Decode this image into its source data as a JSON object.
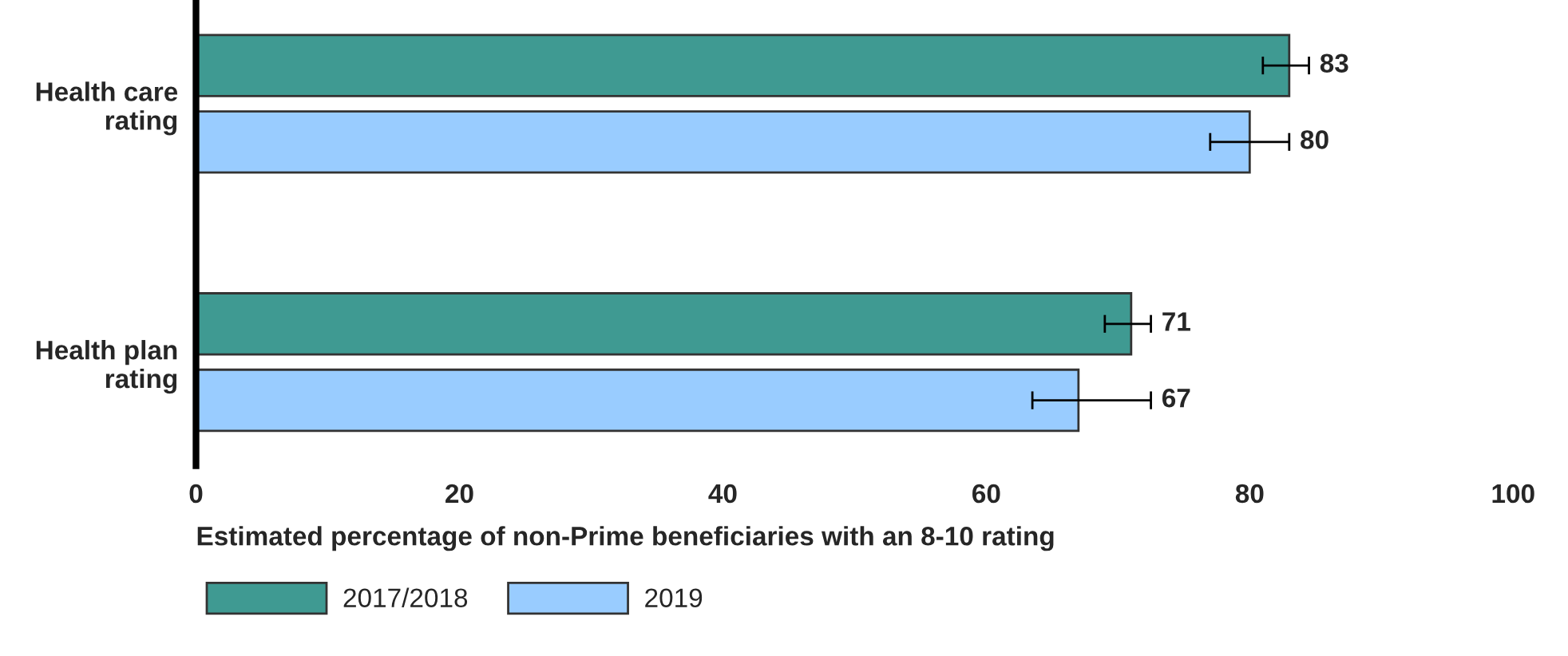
{
  "chart_data": {
    "type": "bar",
    "orientation": "horizontal",
    "categories": [
      "Health care\nrating",
      "Health plan\nrating"
    ],
    "series": [
      {
        "name": "2017/2018",
        "color": "#3f9a92",
        "values": [
          83,
          71
        ],
        "errors": [
          [
            81,
            84.5
          ],
          [
            69,
            72.5
          ]
        ]
      },
      {
        "name": "2019",
        "color": "#99ccff",
        "values": [
          80,
          67
        ],
        "errors": [
          [
            77,
            83
          ],
          [
            63.5,
            72.5
          ]
        ]
      }
    ],
    "xlabel": "Estimated percentage of non-Prime beneficiaries with an 8-10 rating",
    "xlim": [
      0,
      100
    ],
    "xticks": [
      0,
      20,
      40,
      60,
      80,
      100
    ],
    "data_labels": true,
    "grid": false,
    "legend": "bottom left"
  }
}
